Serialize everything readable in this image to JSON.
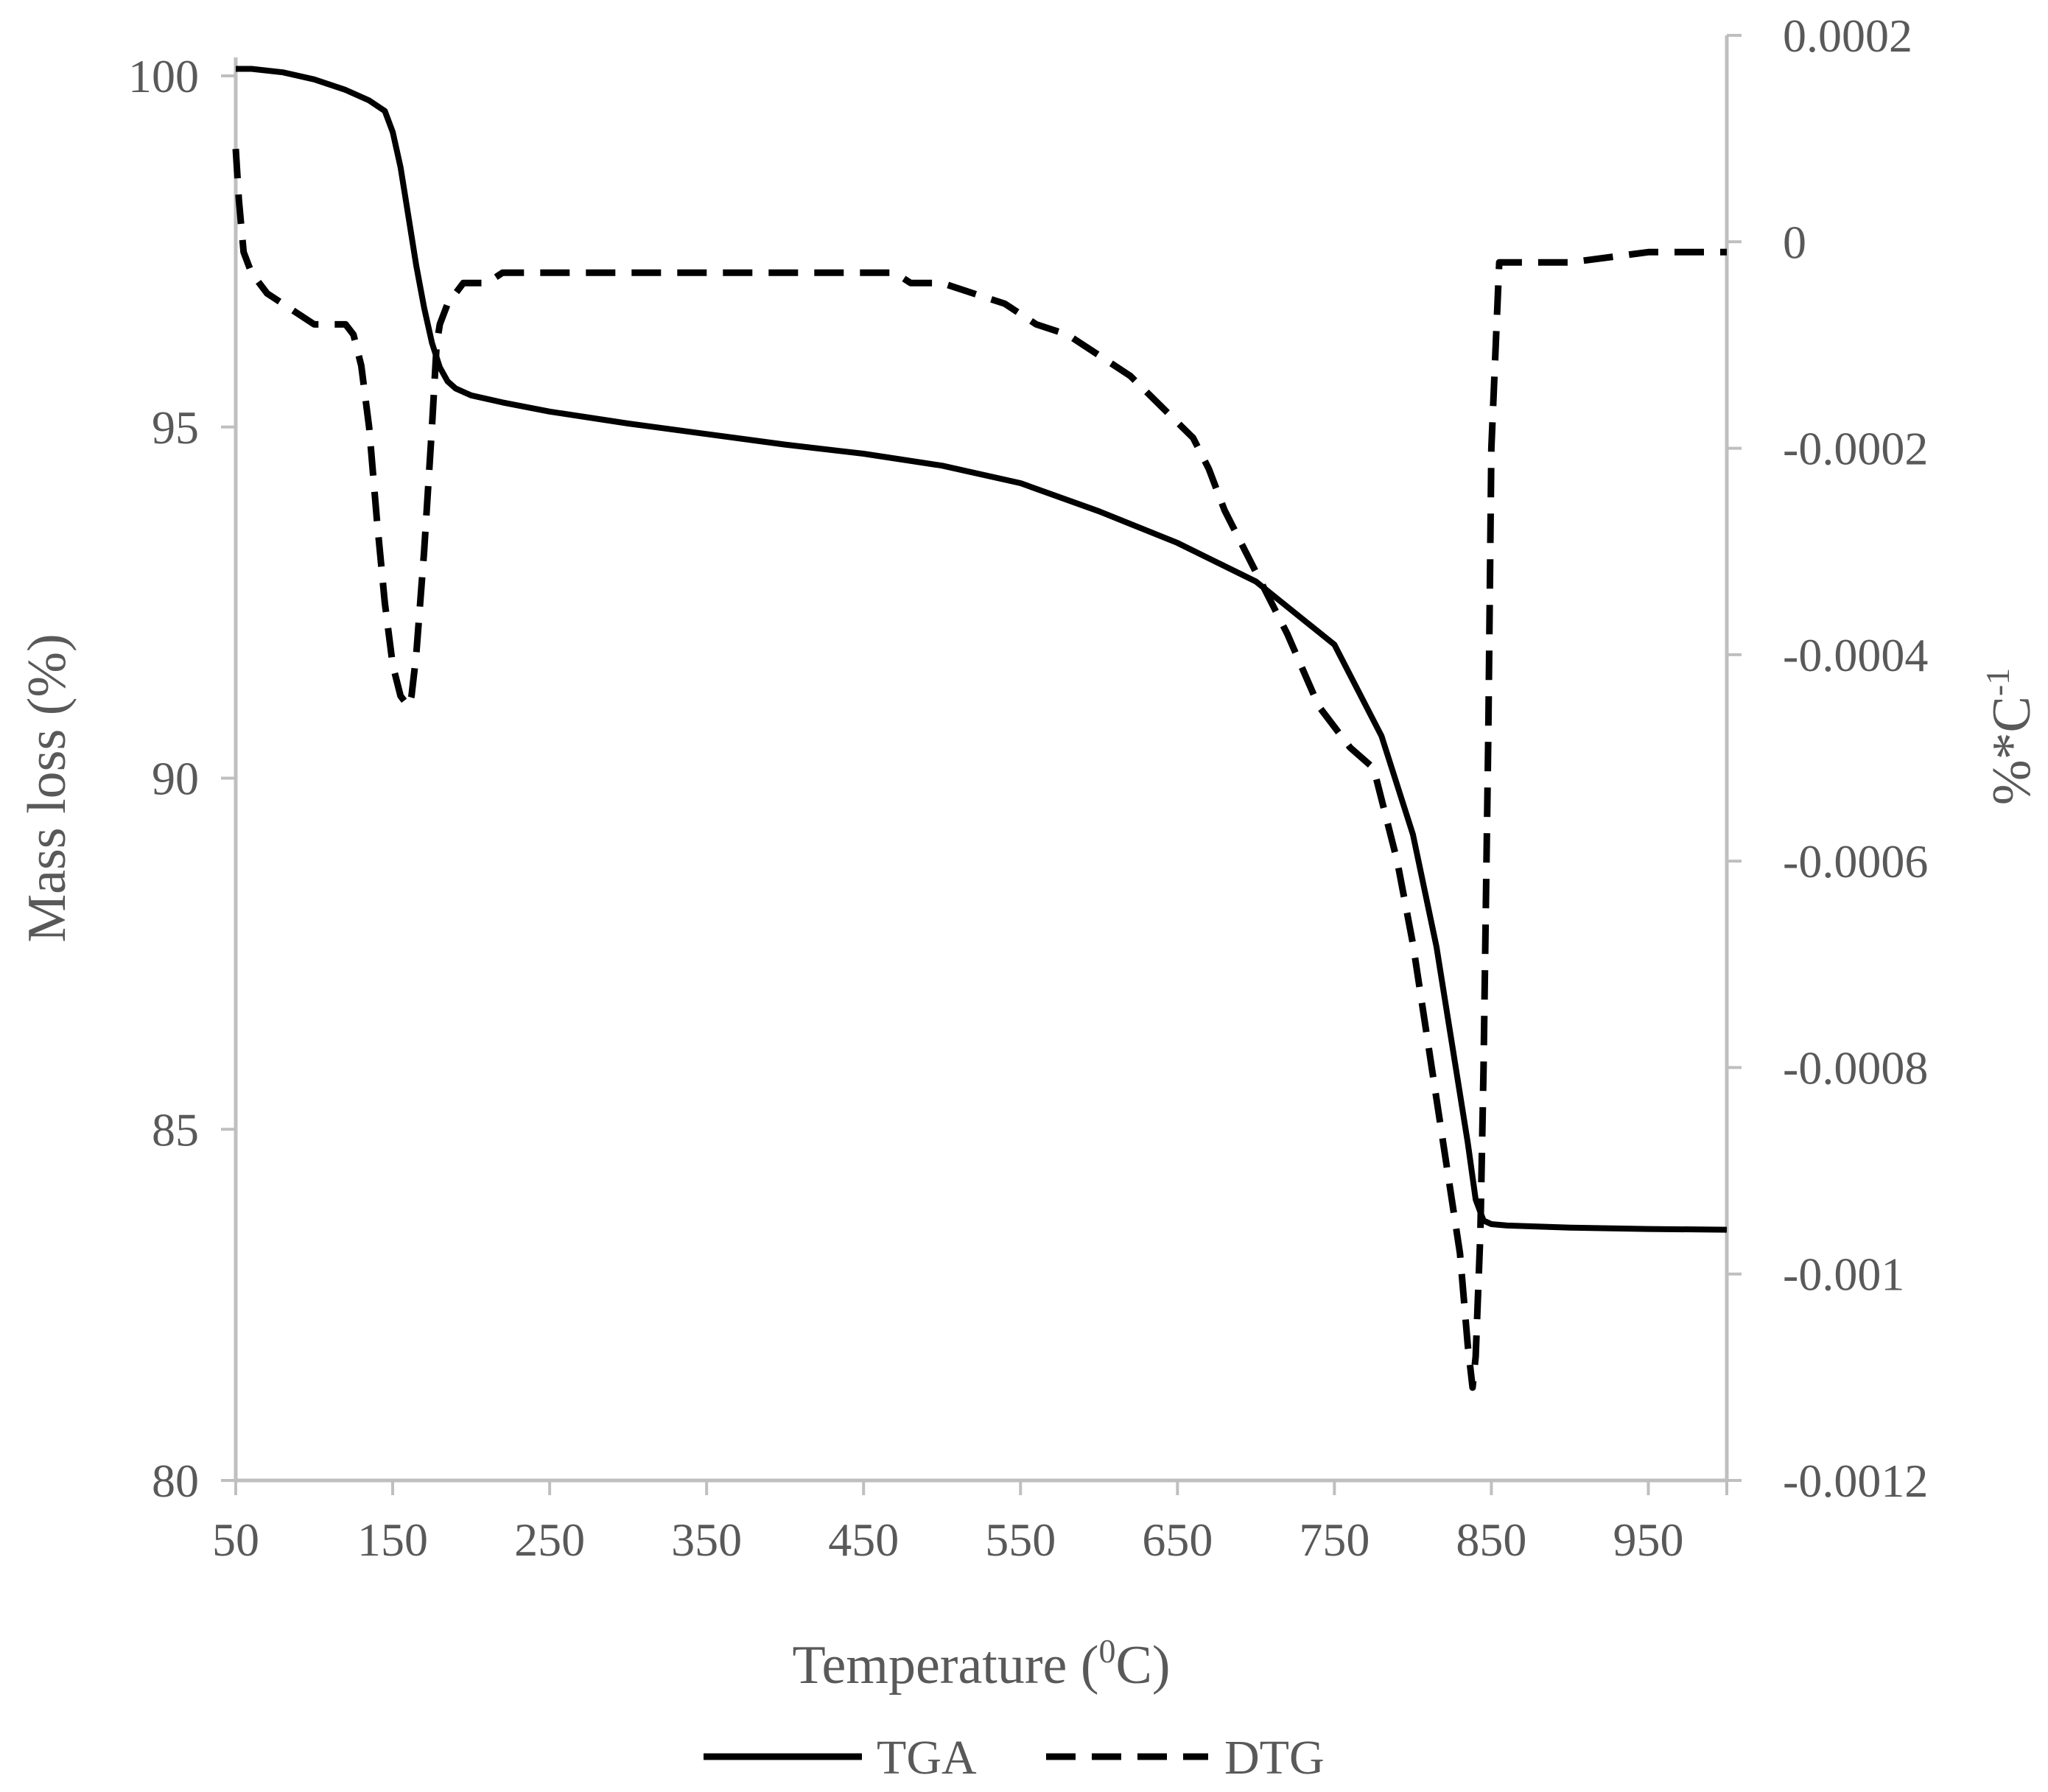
{
  "chart_data": {
    "type": "line",
    "title": "",
    "xlabel": {
      "main": "Temperature (",
      "sup": "0",
      "tail": "C)"
    },
    "ylabel_left": "Mass loss (%)",
    "ylabel_right": {
      "main": "%*C",
      "sup": "-1"
    },
    "x_ticks": [
      "50",
      "150",
      "250",
      "350",
      "450",
      "550",
      "650",
      "750",
      "850",
      "950"
    ],
    "x_tick_values": [
      50,
      150,
      250,
      350,
      450,
      550,
      650,
      750,
      850,
      950
    ],
    "y_left_ticks": [
      "80",
      "85",
      "90",
      "95",
      "100"
    ],
    "y_left_tick_values": [
      80,
      85,
      90,
      95,
      100
    ],
    "y_right_ticks": [
      "0.0002",
      "0",
      "-0.0002",
      "-0.0004",
      "-0.0006",
      "-0.0008",
      "-0.001",
      "-0.0012"
    ],
    "y_right_tick_values": [
      0.0002,
      0,
      -0.0002,
      -0.0004,
      -0.0006,
      -0.0008,
      -0.001,
      -0.0012
    ],
    "xlim": [
      50,
      1000
    ],
    "ylim_left": [
      80,
      100.5
    ],
    "ylim_right": [
      -0.0012,
      0.0002
    ],
    "grid": false,
    "legend_position": "bottom",
    "series": [
      {
        "name": "TGA",
        "axis": "left",
        "style": "solid",
        "x": [
          50,
          60,
          80,
          100,
          120,
          135,
          145,
          150,
          155,
          160,
          165,
          170,
          175,
          180,
          185,
          190,
          200,
          220,
          250,
          300,
          350,
          400,
          450,
          500,
          550,
          600,
          650,
          700,
          750,
          780,
          800,
          815,
          825,
          835,
          840,
          845,
          850,
          860,
          900,
          950,
          1000
        ],
        "values": [
          100.1,
          100.1,
          100.05,
          99.95,
          99.8,
          99.65,
          99.5,
          99.2,
          98.7,
          98.0,
          97.3,
          96.7,
          96.2,
          95.85,
          95.65,
          95.55,
          95.45,
          95.35,
          95.22,
          95.05,
          94.9,
          94.75,
          94.62,
          94.45,
          94.2,
          93.8,
          93.35,
          92.8,
          91.9,
          90.6,
          89.2,
          87.6,
          86.2,
          84.8,
          84.0,
          83.7,
          83.65,
          83.63,
          83.6,
          83.58,
          83.57
        ]
      },
      {
        "name": "DTG",
        "axis": "right",
        "style": "dashed",
        "x": [
          50,
          52,
          55,
          60,
          70,
          80,
          90,
          100,
          110,
          120,
          125,
          130,
          135,
          140,
          145,
          150,
          155,
          160,
          162,
          165,
          170,
          175,
          178,
          180,
          185,
          190,
          195,
          200,
          210,
          220,
          250,
          300,
          350,
          400,
          450,
          470,
          480,
          500,
          520,
          540,
          560,
          580,
          600,
          620,
          640,
          660,
          670,
          680,
          700,
          720,
          740,
          760,
          775,
          790,
          800,
          810,
          820,
          830,
          835,
          838,
          840,
          843,
          845,
          848,
          850,
          855,
          860,
          870,
          900,
          950,
          1000
        ],
        "values": [
          9e-05,
          4e-05,
          -1e-05,
          -3e-05,
          -5e-05,
          -6e-05,
          -7e-05,
          -8e-05,
          -8e-05,
          -8e-05,
          -9e-05,
          -0.00012,
          -0.00018,
          -0.00027,
          -0.00035,
          -0.00041,
          -0.00044,
          -0.00045,
          -0.00044,
          -0.0004,
          -0.0003,
          -0.00018,
          -0.0001,
          -8e-05,
          -6e-05,
          -5e-05,
          -4e-05,
          -4e-05,
          -4e-05,
          -3e-05,
          -3e-05,
          -3e-05,
          -3e-05,
          -3e-05,
          -3e-05,
          -3e-05,
          -4e-05,
          -4e-05,
          -5e-05,
          -6e-05,
          -8e-05,
          -9e-05,
          -0.00011,
          -0.00013,
          -0.00016,
          -0.00019,
          -0.00022,
          -0.00026,
          -0.00032,
          -0.00038,
          -0.00045,
          -0.00049,
          -0.00051,
          -0.0006,
          -0.00068,
          -0.00078,
          -0.00088,
          -0.00098,
          -0.00107,
          -0.00111,
          -0.00108,
          -0.00096,
          -0.0008,
          -0.00048,
          -0.0002,
          -2e-05,
          -2e-05,
          -2e-05,
          -2e-05,
          -1e-05,
          -1e-05
        ]
      }
    ]
  },
  "legend": {
    "items": [
      {
        "label": "TGA"
      },
      {
        "label": "DTG"
      }
    ]
  },
  "colors": {
    "line": "#000000",
    "axis": "#bfbfbf",
    "text": "#595959"
  }
}
